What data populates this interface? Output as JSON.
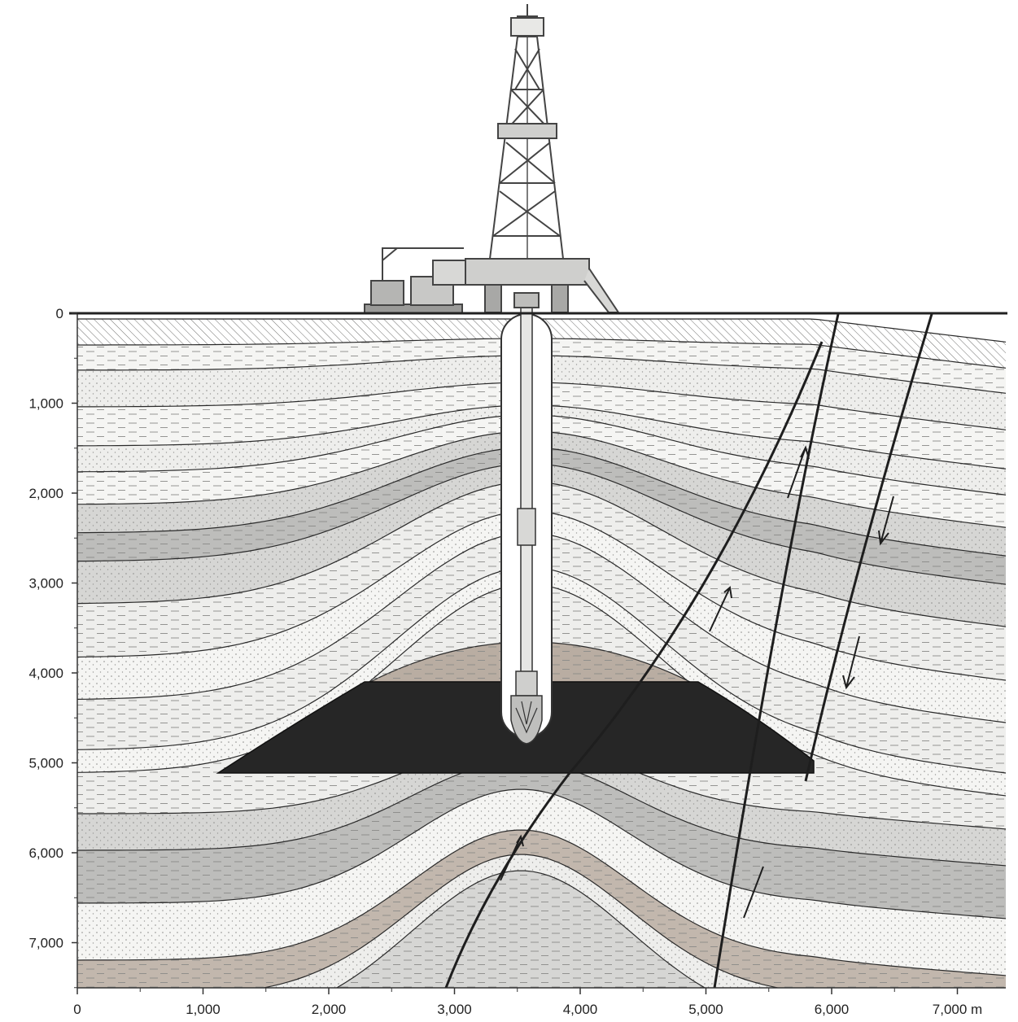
{
  "colors": {
    "background": "#ffffff",
    "sky": "#ffffff",
    "layer_light": "#eeeeec",
    "layer_lighter": "#f5f5f3",
    "layer_mid": "#d6d6d4",
    "layer_dark": "#bdbdbb",
    "cap_rock": "#b9ada2",
    "deep_brown": "#c2b7ad",
    "reservoir": "#262626",
    "line": "#2a2a2a",
    "rig": "#555555"
  },
  "icons": {
    "drilling_rig": "derrick-icon",
    "drill_bit": "drill-bit-icon",
    "crane_truck": "crane-truck-icon"
  },
  "axes": {
    "depth": {
      "ticks": [
        {
          "value": 0,
          "label": "0"
        },
        {
          "value": 1000,
          "label": "1,000"
        },
        {
          "value": 2000,
          "label": "2,000"
        },
        {
          "value": 3000,
          "label": "3,000"
        },
        {
          "value": 4000,
          "label": "4,000"
        },
        {
          "value": 5000,
          "label": "5,000"
        },
        {
          "value": 6000,
          "label": "6,000"
        },
        {
          "value": 7000,
          "label": "7,000"
        }
      ],
      "range": [
        0,
        7500
      ]
    },
    "distance": {
      "ticks": [
        {
          "value": 0,
          "label": "0"
        },
        {
          "value": 1000,
          "label": "1,000"
        },
        {
          "value": 2000,
          "label": "2,000"
        },
        {
          "value": 3000,
          "label": "3,000"
        },
        {
          "value": 4000,
          "label": "4,000"
        },
        {
          "value": 5000,
          "label": "5,000"
        },
        {
          "value": 6000,
          "label": "6,000"
        },
        {
          "value": 7000,
          "label": "7,000 m"
        }
      ],
      "range": [
        0,
        7400
      ]
    }
  }
}
